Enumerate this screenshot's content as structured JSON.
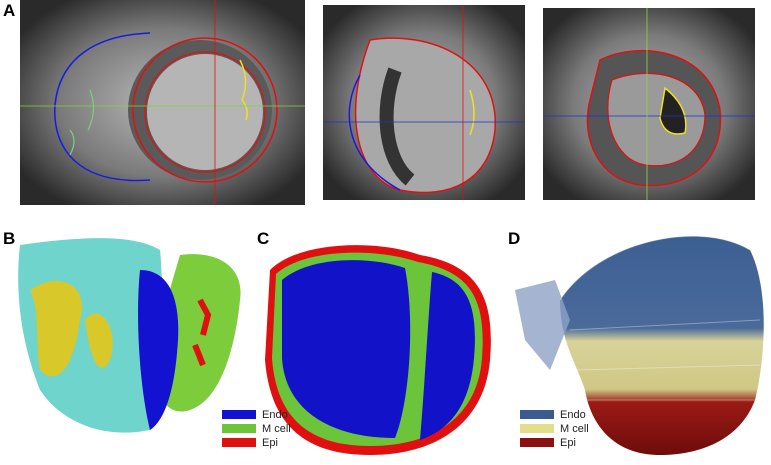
{
  "panels": [
    {
      "label": "A"
    },
    {
      "label": "B"
    },
    {
      "label": "C"
    },
    {
      "label": "D"
    }
  ],
  "legends": [
    {
      "items": [
        "Endo",
        "M cell",
        "Epi"
      ]
    },
    {
      "items": [
        "Endo",
        "M cell",
        "Epi"
      ]
    }
  ]
}
